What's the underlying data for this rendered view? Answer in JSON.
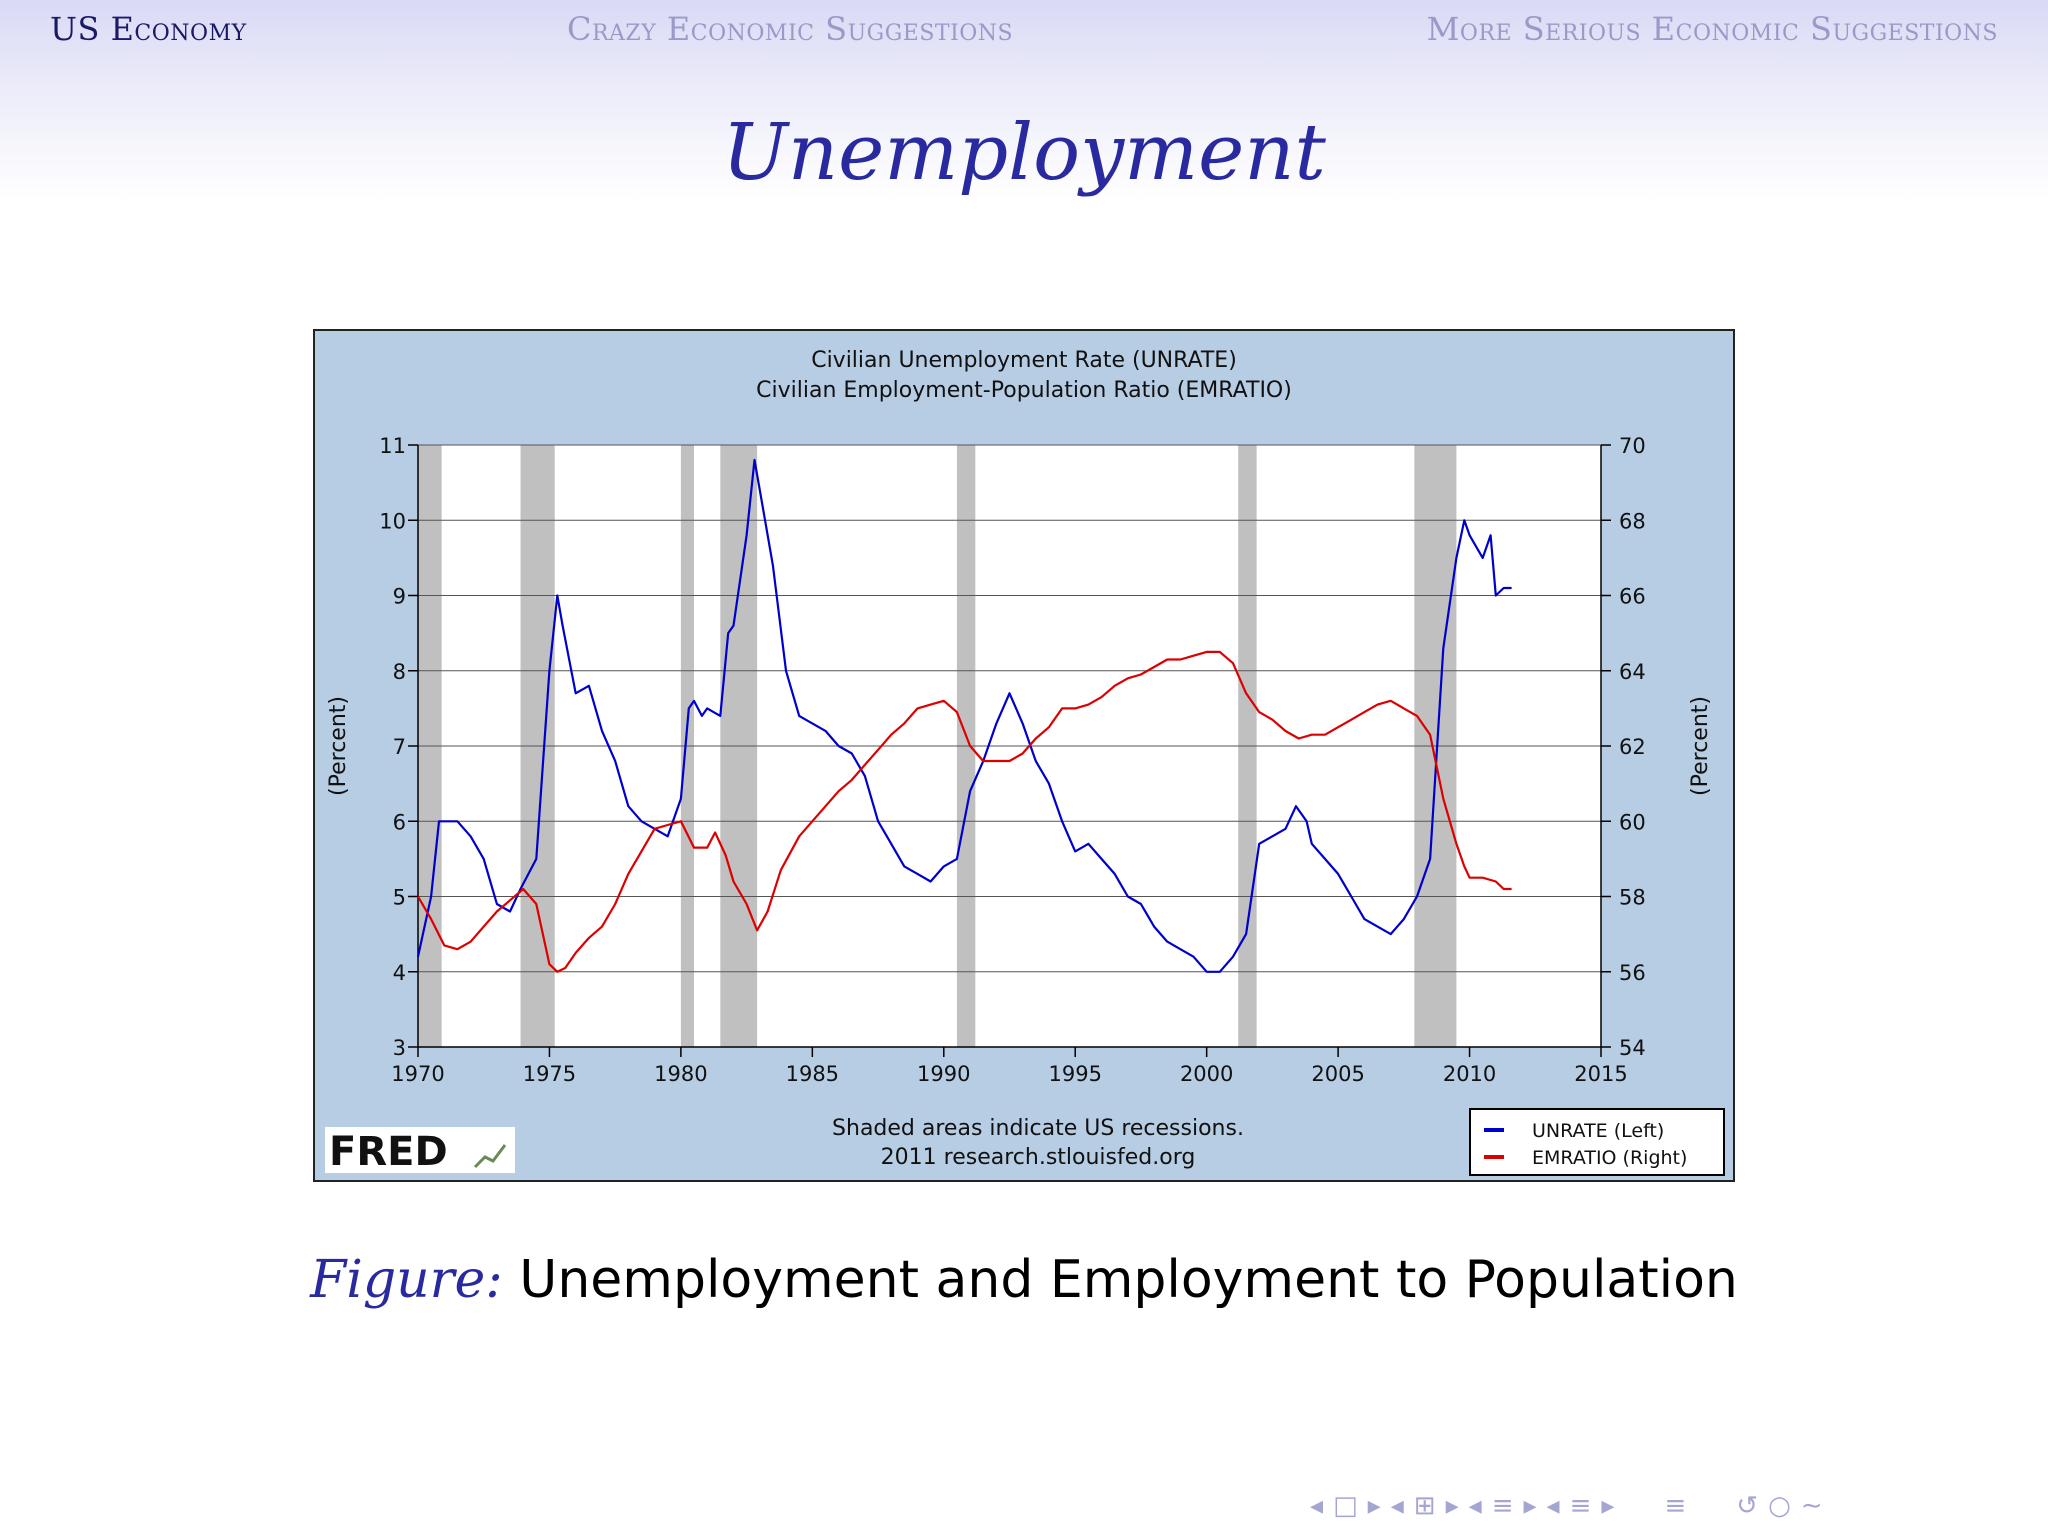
{
  "nav": {
    "items": [
      {
        "label": "US Economy",
        "active": true
      },
      {
        "label": "Crazy Economic Suggestions",
        "active": false
      },
      {
        "label": "More Serious Economic Suggestions",
        "active": false
      }
    ]
  },
  "slide": {
    "title": "Unemployment",
    "caption_label": "Figure:",
    "caption_text": "Unemployment and Employment to Population"
  },
  "colors": {
    "unrate": "#0000cc",
    "emratio": "#dd0000",
    "chart_bg": "#b7cde4",
    "recession_shading": "#c0c0c0",
    "slide_title": "#2a2aa0",
    "nav_active": "#1a1a66",
    "nav_inactive": "#9a9ac8"
  },
  "chart_data": {
    "type": "line",
    "title": [
      "Civilian Unemployment Rate (UNRATE)",
      "Civilian Employment-Population Ratio (EMRATIO)"
    ],
    "xlabel": "",
    "ylabel_left": "(Percent)",
    "ylabel_right": "(Percent)",
    "xlim": [
      1970,
      2015
    ],
    "xticks": [
      1970,
      1975,
      1980,
      1985,
      1990,
      1995,
      2000,
      2005,
      2010,
      2015
    ],
    "ylim_left": [
      3,
      11
    ],
    "yticks_left": [
      3,
      4,
      5,
      6,
      7,
      8,
      9,
      10,
      11
    ],
    "ylim_right": [
      54,
      70
    ],
    "yticks_right": [
      54,
      56,
      58,
      60,
      62,
      64,
      66,
      68,
      70
    ],
    "grid": true,
    "legend_position": "bottom-right",
    "legend": [
      "UNRATE (Left)",
      "EMRATIO (Right)"
    ],
    "footer_note": [
      "Shaded areas indicate US recessions.",
      "2011 research.stlouisfed.org"
    ],
    "brand": "FRED",
    "recessions": [
      [
        1970.0,
        1970.9
      ],
      [
        1973.9,
        1975.2
      ],
      [
        1980.0,
        1980.5
      ],
      [
        1981.5,
        1982.9
      ],
      [
        1990.5,
        1991.2
      ],
      [
        2001.2,
        2001.9
      ],
      [
        2007.9,
        2009.5
      ]
    ],
    "series": [
      {
        "name": "UNRATE (Left)",
        "axis": "left",
        "color": "#0000cc",
        "x": [
          1970.0,
          1970.5,
          1970.8,
          1971.0,
          1971.5,
          1972.0,
          1972.5,
          1973.0,
          1973.5,
          1973.9,
          1974.5,
          1975.0,
          1975.3,
          1975.5,
          1976.0,
          1976.5,
          1977.0,
          1977.5,
          1978.0,
          1978.5,
          1979.0,
          1979.5,
          1980.0,
          1980.3,
          1980.5,
          1980.8,
          1981.0,
          1981.5,
          1981.8,
          1982.0,
          1982.5,
          1982.8,
          1983.0,
          1983.5,
          1984.0,
          1984.5,
          1985.0,
          1985.5,
          1986.0,
          1986.5,
          1987.0,
          1987.5,
          1988.0,
          1988.5,
          1989.0,
          1989.5,
          1990.0,
          1990.5,
          1991.0,
          1991.5,
          1992.0,
          1992.5,
          1993.0,
          1993.5,
          1994.0,
          1994.5,
          1995.0,
          1995.5,
          1996.0,
          1996.5,
          1997.0,
          1997.5,
          1998.0,
          1998.5,
          1999.0,
          1999.5,
          2000.0,
          2000.5,
          2001.0,
          2001.5,
          2002.0,
          2002.5,
          2003.0,
          2003.4,
          2003.8,
          2004.0,
          2004.5,
          2005.0,
          2005.5,
          2006.0,
          2006.5,
          2007.0,
          2007.5,
          2008.0,
          2008.5,
          2009.0,
          2009.5,
          2009.8,
          2010.0,
          2010.5,
          2010.8,
          2011.0,
          2011.3,
          2011.6
        ],
        "values": [
          4.2,
          5.0,
          6.0,
          6.0,
          6.0,
          5.8,
          5.5,
          4.9,
          4.8,
          5.1,
          5.5,
          8.0,
          9.0,
          8.6,
          7.7,
          7.8,
          7.2,
          6.8,
          6.2,
          6.0,
          5.9,
          5.8,
          6.3,
          7.5,
          7.6,
          7.4,
          7.5,
          7.4,
          8.5,
          8.6,
          9.8,
          10.8,
          10.4,
          9.4,
          8.0,
          7.4,
          7.3,
          7.2,
          7.0,
          6.9,
          6.6,
          6.0,
          5.7,
          5.4,
          5.3,
          5.2,
          5.4,
          5.5,
          6.4,
          6.8,
          7.3,
          7.7,
          7.3,
          6.8,
          6.5,
          6.0,
          5.6,
          5.7,
          5.5,
          5.3,
          5.0,
          4.9,
          4.6,
          4.4,
          4.3,
          4.2,
          4.0,
          4.0,
          4.2,
          4.5,
          5.7,
          5.8,
          5.9,
          6.2,
          6.0,
          5.7,
          5.5,
          5.3,
          5.0,
          4.7,
          4.6,
          4.5,
          4.7,
          5.0,
          5.5,
          8.3,
          9.5,
          10.0,
          9.8,
          9.5,
          9.8,
          9.0,
          9.1,
          9.1
        ]
      },
      {
        "name": "EMRATIO (Right)",
        "axis": "right",
        "color": "#dd0000",
        "x": [
          1970.0,
          1970.5,
          1971.0,
          1971.5,
          1972.0,
          1972.5,
          1973.0,
          1973.5,
          1974.0,
          1974.5,
          1975.0,
          1975.3,
          1975.6,
          1976.0,
          1976.5,
          1977.0,
          1977.5,
          1978.0,
          1978.5,
          1979.0,
          1979.5,
          1980.0,
          1980.5,
          1981.0,
          1981.3,
          1981.7,
          1982.0,
          1982.5,
          1982.9,
          1983.3,
          1983.8,
          1984.5,
          1985.0,
          1985.5,
          1986.0,
          1986.5,
          1987.0,
          1987.5,
          1988.0,
          1988.5,
          1989.0,
          1989.5,
          1990.0,
          1990.5,
          1991.0,
          1991.5,
          1992.0,
          1992.5,
          1993.0,
          1993.5,
          1994.0,
          1994.5,
          1995.0,
          1995.5,
          1996.0,
          1996.5,
          1997.0,
          1997.5,
          1998.0,
          1998.5,
          1999.0,
          1999.5,
          2000.0,
          2000.5,
          2001.0,
          2001.5,
          2002.0,
          2002.5,
          2003.0,
          2003.5,
          2004.0,
          2004.5,
          2005.0,
          2005.5,
          2006.0,
          2006.5,
          2007.0,
          2007.5,
          2008.0,
          2008.5,
          2009.0,
          2009.5,
          2009.8,
          2010.0,
          2010.5,
          2011.0,
          2011.3,
          2011.6
        ],
        "values": [
          58.0,
          57.4,
          56.7,
          56.6,
          56.8,
          57.2,
          57.6,
          57.9,
          58.2,
          57.8,
          56.2,
          56.0,
          56.1,
          56.5,
          56.9,
          57.2,
          57.8,
          58.6,
          59.2,
          59.8,
          59.9,
          60.0,
          59.3,
          59.3,
          59.7,
          59.1,
          58.4,
          57.8,
          57.1,
          57.6,
          58.7,
          59.6,
          60.0,
          60.4,
          60.8,
          61.1,
          61.5,
          61.9,
          62.3,
          62.6,
          63.0,
          63.1,
          63.2,
          62.9,
          62.0,
          61.6,
          61.6,
          61.6,
          61.8,
          62.2,
          62.5,
          63.0,
          63.0,
          63.1,
          63.3,
          63.6,
          63.8,
          63.9,
          64.1,
          64.3,
          64.3,
          64.4,
          64.5,
          64.5,
          64.2,
          63.4,
          62.9,
          62.7,
          62.4,
          62.2,
          62.3,
          62.3,
          62.5,
          62.7,
          62.9,
          63.1,
          63.2,
          63.0,
          62.8,
          62.3,
          60.6,
          59.4,
          58.8,
          58.5,
          58.5,
          58.4,
          58.2,
          58.2
        ]
      }
    ]
  },
  "controls": [
    "◂",
    "□",
    "▸",
    "◂",
    "⊞",
    "▸",
    "◂",
    "≡",
    "▸",
    "◂",
    "≡",
    "▸",
    "≡",
    "↺",
    "○",
    "∼"
  ]
}
